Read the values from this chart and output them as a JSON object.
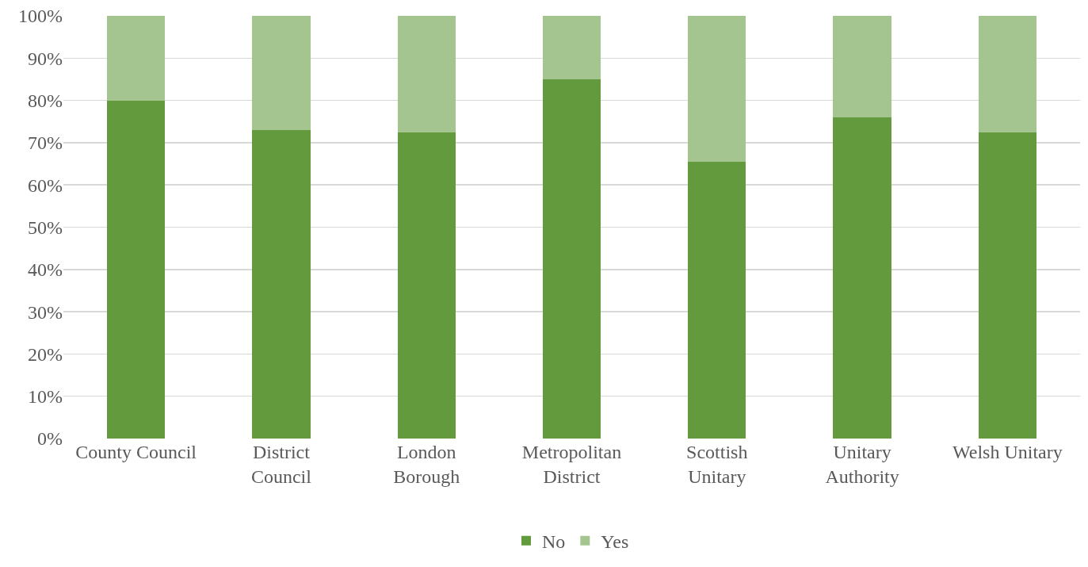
{
  "chart_data": {
    "type": "bar",
    "stacked": true,
    "categories": [
      "County Council",
      "District\nCouncil",
      "London\nBorough",
      "Metropolitan\nDistrict",
      "Scottish\nUnitary",
      "Unitary\nAuthority",
      "Welsh Unitary"
    ],
    "series": [
      {
        "name": "No",
        "color": "#629a3d",
        "values": [
          80,
          73,
          72.5,
          85,
          65.5,
          76,
          72.5
        ]
      },
      {
        "name": "Yes",
        "color": "#a4c490",
        "values": [
          20,
          27,
          27.5,
          15,
          34.5,
          24,
          27.5
        ]
      }
    ],
    "ylim": [
      0,
      100
    ],
    "yticks": [
      {
        "value": 0,
        "label": "0%"
      },
      {
        "value": 10,
        "label": "10%"
      },
      {
        "value": 20,
        "label": "20%"
      },
      {
        "value": 30,
        "label": "30%"
      },
      {
        "value": 40,
        "label": "40%"
      },
      {
        "value": 50,
        "label": "50%"
      },
      {
        "value": 60,
        "label": "60%"
      },
      {
        "value": 70,
        "label": "70%"
      },
      {
        "value": 80,
        "label": "80%"
      },
      {
        "value": 90,
        "label": "90%"
      },
      {
        "value": 100,
        "label": "100%"
      }
    ],
    "grid": "y",
    "legend": "bottom"
  }
}
